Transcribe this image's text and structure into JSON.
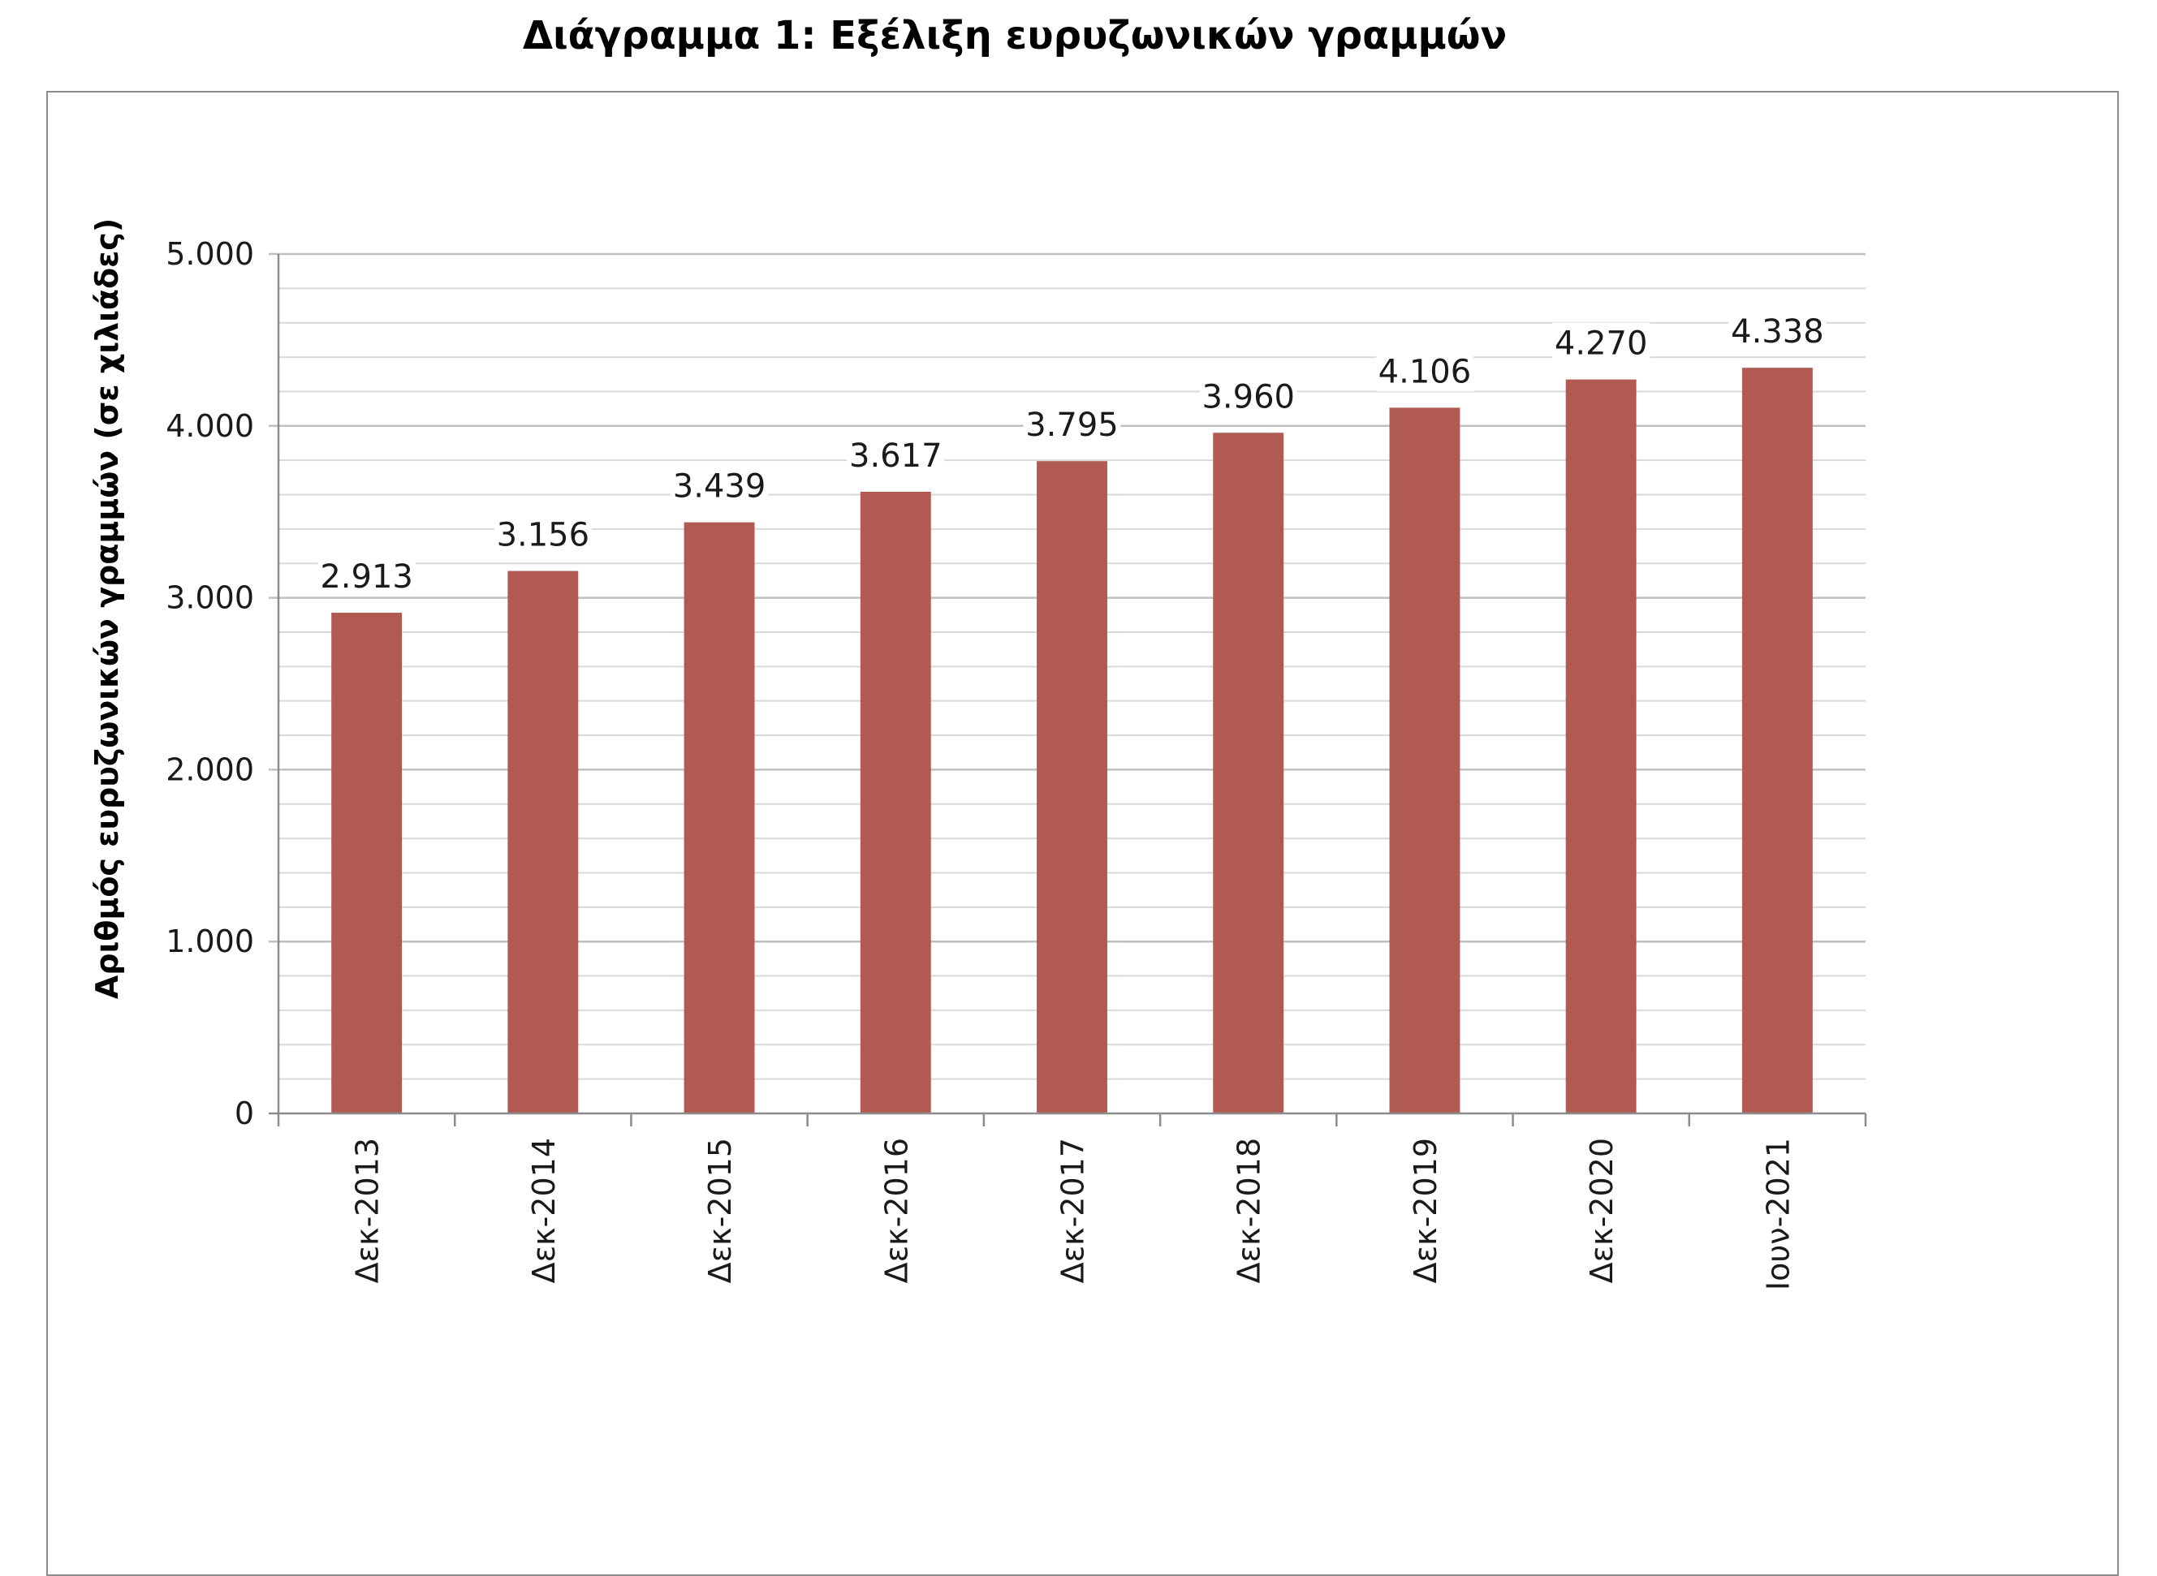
{
  "chart_data": {
    "type": "bar",
    "title": "Διάγραμμα 1: Εξέλιξη ευρυζωνικών γραμμών",
    "xlabel": "",
    "ylabel": "Αριθμός ευρυζωνικών γραμμών (σε χιλιάδες)",
    "categories": [
      "Δεκ-2013",
      "Δεκ-2014",
      "Δεκ-2015",
      "Δεκ-2016",
      "Δεκ-2017",
      "Δεκ-2018",
      "Δεκ-2019",
      "Δεκ-2020",
      "Ιουν-2021"
    ],
    "values": [
      2913,
      3156,
      3439,
      3617,
      3795,
      3960,
      4106,
      4270,
      4338
    ],
    "value_labels": [
      "2.913",
      "3.156",
      "3.439",
      "3.617",
      "3.795",
      "3.960",
      "4.106",
      "4.270",
      "4.338"
    ],
    "ylim": [
      0,
      5000
    ],
    "major_ticks": [
      0,
      1000,
      2000,
      3000,
      4000,
      5000
    ],
    "major_tick_labels": [
      "0",
      "1.000",
      "2.000",
      "3.000",
      "4.000",
      "5.000"
    ],
    "minor_step": 200,
    "grid": true,
    "bar_color": "#b05a52",
    "gridline_color": "#bfbfbf"
  }
}
